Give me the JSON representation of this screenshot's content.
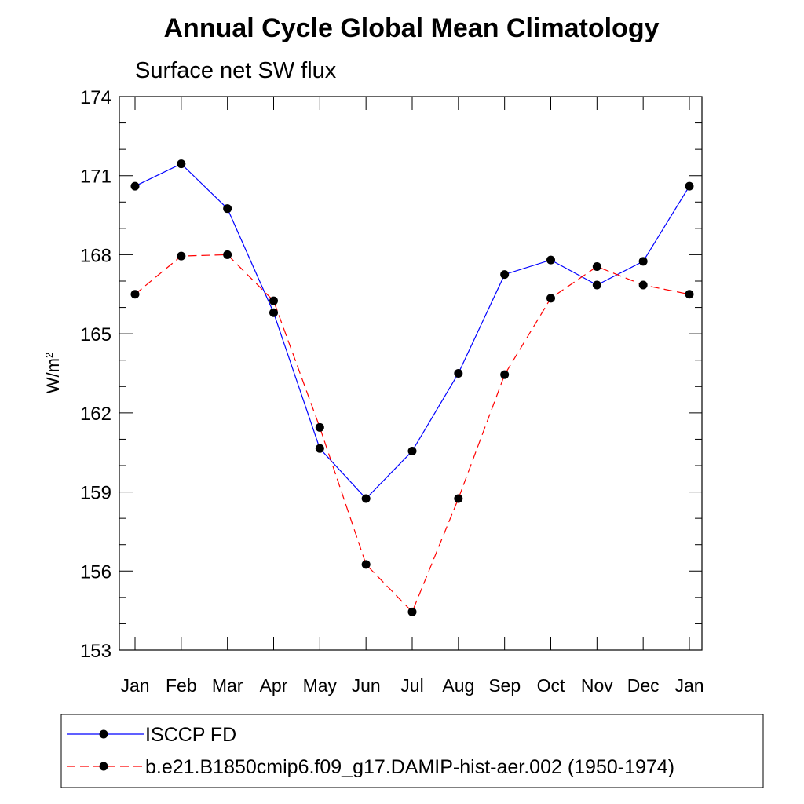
{
  "chart_data": {
    "type": "line",
    "title": "Annual Cycle Global Mean Climatology",
    "subtitle": "Surface net SW flux",
    "ylabel": "W/m",
    "ylabel_sup": "2",
    "xlabel": "",
    "categories": [
      "Jan",
      "Feb",
      "Mar",
      "Apr",
      "May",
      "Jun",
      "Jul",
      "Aug",
      "Sep",
      "Oct",
      "Nov",
      "Dec",
      "Jan"
    ],
    "ylim": [
      153,
      174
    ],
    "yticks": [
      "174",
      "171",
      "168",
      "165",
      "162",
      "159",
      "156",
      "153"
    ],
    "grid": false,
    "legend_position": "bottom",
    "series": [
      {
        "name": "ISCCP FD",
        "color": "#0000ff",
        "line_style": "solid",
        "values": [
          170.6,
          171.45,
          169.75,
          165.8,
          160.65,
          158.75,
          160.55,
          163.5,
          167.25,
          167.8,
          166.85,
          167.75,
          170.6
        ]
      },
      {
        "name": "b.e21.B1850cmip6.f09_g17.DAMIP-hist-aer.002 (1950-1974)",
        "color": "#ff0000",
        "line_style": "dashed",
        "values": [
          166.5,
          167.95,
          168.0,
          166.25,
          161.45,
          156.25,
          154.45,
          158.75,
          163.45,
          166.35,
          167.55,
          166.85,
          166.5
        ]
      }
    ]
  }
}
